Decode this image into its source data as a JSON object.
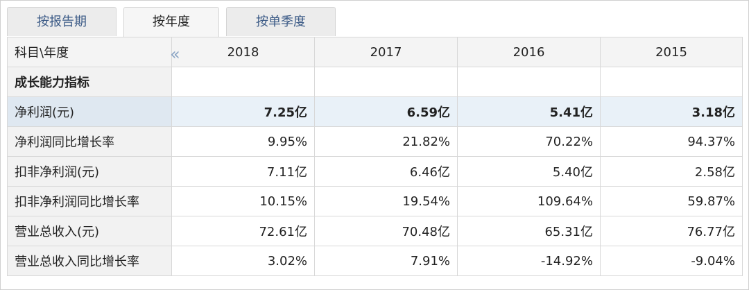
{
  "tabs": [
    "按报告期",
    "按年度",
    "按单季度"
  ],
  "table": {
    "header": [
      "科目\\年度",
      "2018",
      "2017",
      "2016",
      "2015"
    ],
    "section": "成长能力指标",
    "rows": [
      [
        "净利润(元)",
        "7.25亿",
        "6.59亿",
        "5.41亿",
        "3.18亿"
      ],
      [
        "净利润同比增长率",
        "9.95%",
        "21.82%",
        "70.22%",
        "94.37%"
      ],
      [
        "扣非净利润(元)",
        "7.11亿",
        "6.46亿",
        "5.40亿",
        "2.58亿"
      ],
      [
        "扣非净利润同比增长率",
        "10.15%",
        "19.54%",
        "109.64%",
        "59.87%"
      ],
      [
        "营业总收入(元)",
        "72.61亿",
        "70.48亿",
        "65.31亿",
        "76.77亿"
      ],
      [
        "营业总收入同比增长率",
        "3.02%",
        "7.91%",
        "-14.92%",
        "-9.04%"
      ]
    ]
  }
}
